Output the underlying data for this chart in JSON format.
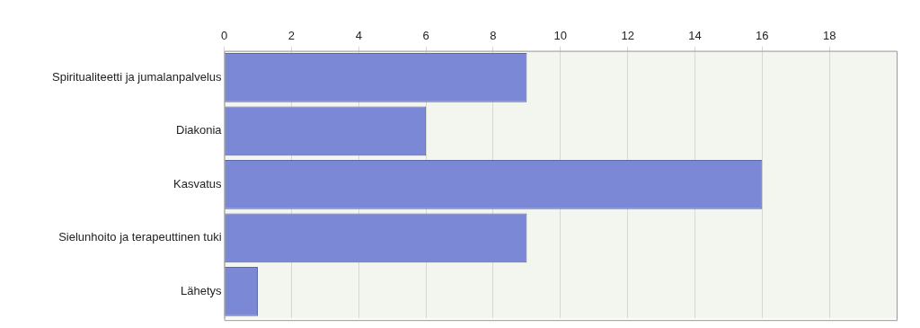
{
  "chart_data": {
    "type": "bar",
    "orientation": "horizontal",
    "categories": [
      "Spiritualiteetti ja jumalanpalvelus",
      "Diakonia",
      "Kasvatus",
      "Sielunhoito ja terapeuttinen tuki",
      "Lähetys"
    ],
    "values": [
      9,
      6,
      16,
      9,
      1
    ],
    "color": "#7b88d6",
    "xlim": [
      0,
      20
    ],
    "xticks": [
      0,
      2,
      4,
      6,
      8,
      10,
      12,
      14,
      16,
      18
    ],
    "grid": "x",
    "legend": false
  }
}
